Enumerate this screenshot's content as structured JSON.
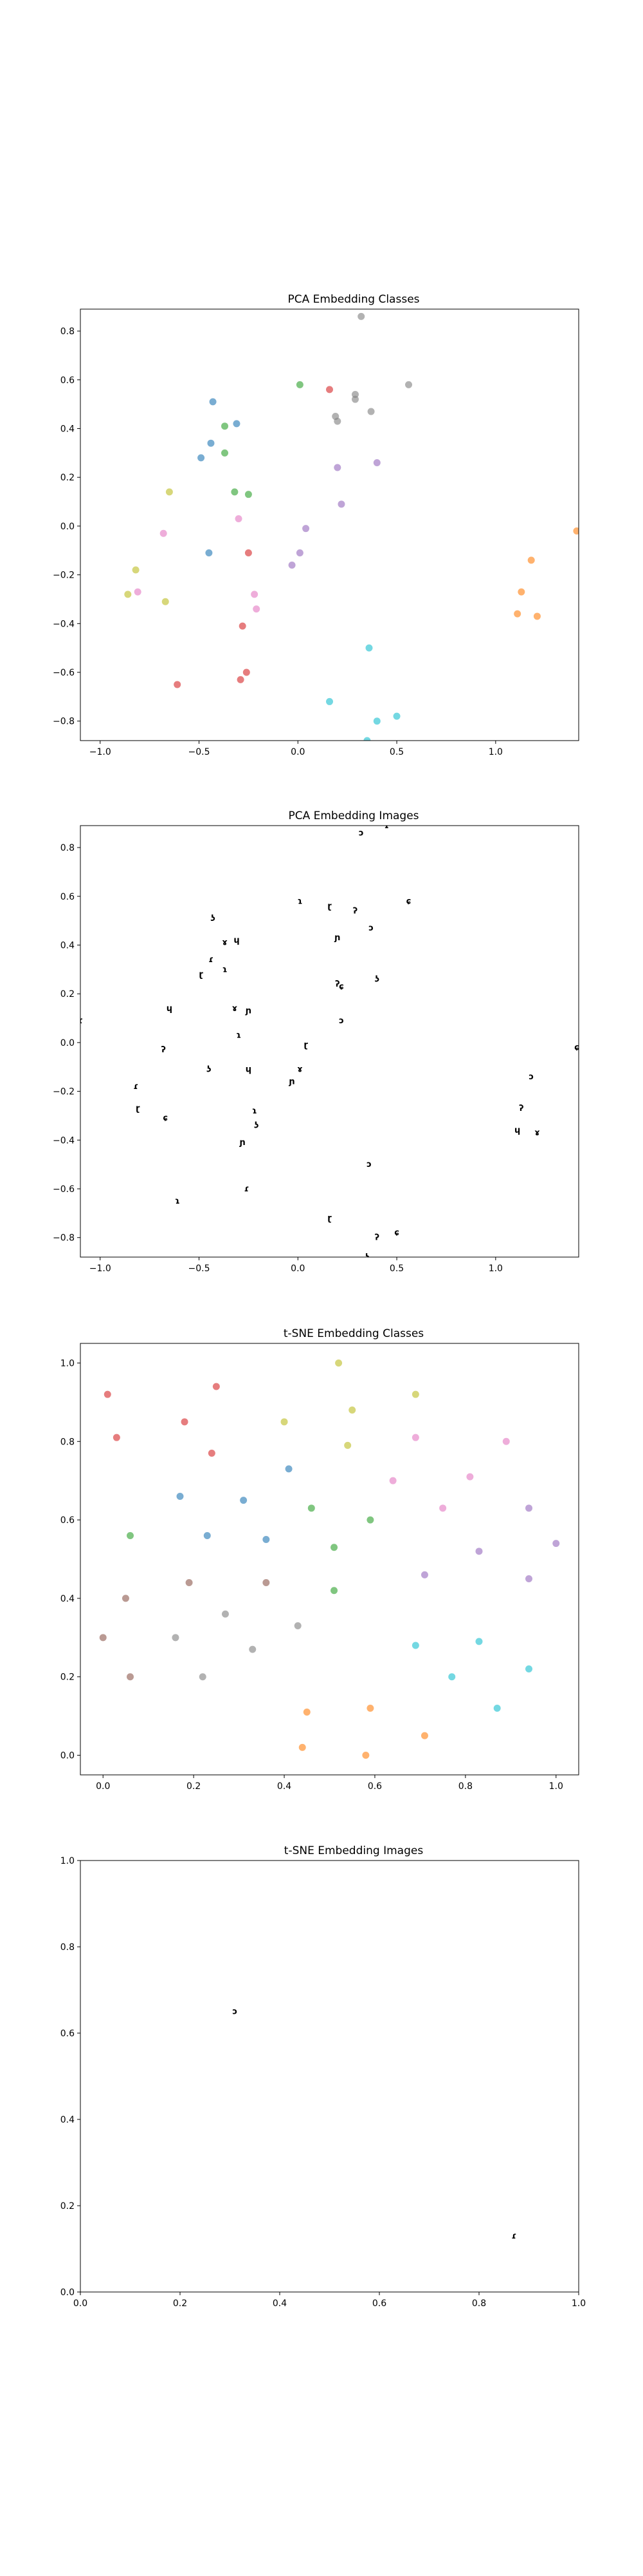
{
  "chart_data": [
    {
      "type": "scatter",
      "title": "PCA Embedding Classes",
      "xlim": [
        -1.1,
        1.42
      ],
      "ylim": [
        -0.88,
        0.89
      ],
      "xticks": [
        -1.0,
        -0.5,
        0.0,
        0.5,
        1.0
      ],
      "yticks": [
        -0.8,
        -0.6,
        -0.4,
        -0.2,
        0.0,
        0.2,
        0.4,
        0.6,
        0.8
      ],
      "xtick_labels": [
        "−1.0",
        "−0.5",
        "0.0",
        "0.5",
        "1.0"
      ],
      "ytick_labels": [
        "−0.8",
        "−0.6",
        "−0.4",
        "−0.2",
        "0.0",
        "0.2",
        "0.4",
        "0.6",
        "0.8"
      ],
      "grid": false,
      "series": [
        {
          "color": "#1f77b4",
          "points": [
            [
              -0.43,
              0.51
            ],
            [
              -0.31,
              0.42
            ],
            [
              -0.44,
              0.34
            ],
            [
              -0.49,
              0.28
            ],
            [
              -0.45,
              -0.11
            ]
          ]
        },
        {
          "color": "#ff7f0e",
          "points": [
            [
              1.41,
              -0.02
            ],
            [
              1.18,
              -0.14
            ],
            [
              1.13,
              -0.27
            ],
            [
              1.11,
              -0.36
            ],
            [
              1.21,
              -0.37
            ]
          ]
        },
        {
          "color": "#2ca02c",
          "points": [
            [
              0.01,
              0.58
            ],
            [
              -0.37,
              0.41
            ],
            [
              -0.37,
              0.3
            ],
            [
              -0.32,
              0.14
            ],
            [
              -0.25,
              0.13
            ]
          ]
        },
        {
          "color": "#d62728",
          "points": [
            [
              0.16,
              0.56
            ],
            [
              -0.25,
              -0.11
            ],
            [
              -0.28,
              -0.41
            ],
            [
              -0.26,
              -0.6
            ],
            [
              -0.29,
              -0.63
            ],
            [
              -0.61,
              -0.65
            ]
          ]
        },
        {
          "color": "#9467bd",
          "points": [
            [
              0.2,
              0.24
            ],
            [
              0.4,
              0.26
            ],
            [
              0.22,
              0.09
            ],
            [
              0.04,
              -0.01
            ],
            [
              0.01,
              -0.11
            ],
            [
              -0.03,
              -0.16
            ]
          ]
        },
        {
          "color": "#e377c2",
          "points": [
            [
              -0.68,
              -0.03
            ],
            [
              -0.3,
              0.03
            ],
            [
              -0.22,
              -0.28
            ],
            [
              -0.21,
              -0.34
            ],
            [
              -0.81,
              -0.27
            ]
          ]
        },
        {
          "color": "#7f7f7f",
          "points": [
            [
              0.32,
              0.86
            ],
            [
              0.29,
              0.54
            ],
            [
              0.29,
              0.52
            ],
            [
              0.37,
              0.47
            ],
            [
              0.19,
              0.45
            ],
            [
              0.2,
              0.43
            ],
            [
              0.56,
              0.58
            ]
          ]
        },
        {
          "color": "#bcbd22",
          "points": [
            [
              -0.65,
              0.14
            ],
            [
              -0.82,
              -0.18
            ],
            [
              -0.86,
              -0.28
            ],
            [
              -0.67,
              -0.31
            ]
          ]
        },
        {
          "color": "#17becf",
          "points": [
            [
              0.36,
              -0.5
            ],
            [
              0.4,
              -0.8
            ],
            [
              0.5,
              -0.78
            ],
            [
              0.16,
              -0.72
            ],
            [
              0.35,
              -0.88
            ]
          ]
        }
      ]
    },
    {
      "type": "scatter",
      "title": "PCA Embedding Images",
      "xlim": [
        -1.1,
        1.42
      ],
      "ylim": [
        -0.88,
        0.89
      ],
      "xticks": [
        -1.0,
        -0.5,
        0.0,
        0.5,
        1.0
      ],
      "yticks": [
        -0.8,
        -0.6,
        -0.4,
        -0.2,
        0.0,
        0.2,
        0.4,
        0.6,
        0.8
      ],
      "xtick_labels": [
        "−1.0",
        "−0.5",
        "0.0",
        "0.5",
        "1.0"
      ],
      "ytick_labels": [
        "−0.8",
        "−0.6",
        "−0.4",
        "−0.2",
        "0.0",
        "0.2",
        "0.4",
        "0.6",
        "0.8"
      ],
      "grid": false,
      "marker": "image-glyph",
      "glyphs": [
        "ɔ",
        "ɾ",
        "ɿ",
        "ɽ",
        "ʔ",
        "ɕ",
        "ʖ",
        "ɥ",
        "ɤ",
        "ɲ"
      ],
      "points": [
        [
          0.32,
          0.86
        ],
        [
          0.45,
          0.89
        ],
        [
          0.01,
          0.58
        ],
        [
          0.16,
          0.56
        ],
        [
          0.29,
          0.54
        ],
        [
          0.56,
          0.58
        ],
        [
          -0.43,
          0.51
        ],
        [
          -0.31,
          0.42
        ],
        [
          -0.37,
          0.41
        ],
        [
          0.2,
          0.43
        ],
        [
          0.37,
          0.47
        ],
        [
          -0.44,
          0.34
        ],
        [
          -0.37,
          0.3
        ],
        [
          -0.49,
          0.28
        ],
        [
          0.2,
          0.24
        ],
        [
          0.22,
          0.23
        ],
        [
          0.4,
          0.26
        ],
        [
          -0.65,
          0.14
        ],
        [
          -0.32,
          0.14
        ],
        [
          -0.25,
          0.13
        ],
        [
          0.22,
          0.09
        ],
        [
          -1.1,
          0.09
        ],
        [
          -0.3,
          0.03
        ],
        [
          0.04,
          -0.01
        ],
        [
          -0.68,
          -0.03
        ],
        [
          1.41,
          -0.02
        ],
        [
          -0.45,
          -0.11
        ],
        [
          -0.25,
          -0.11
        ],
        [
          0.01,
          -0.11
        ],
        [
          -0.03,
          -0.16
        ],
        [
          1.18,
          -0.14
        ],
        [
          -0.82,
          -0.18
        ],
        [
          -0.22,
          -0.28
        ],
        [
          -0.81,
          -0.27
        ],
        [
          1.13,
          -0.27
        ],
        [
          -0.67,
          -0.31
        ],
        [
          -0.21,
          -0.34
        ],
        [
          1.11,
          -0.36
        ],
        [
          1.21,
          -0.37
        ],
        [
          -0.28,
          -0.41
        ],
        [
          0.36,
          -0.5
        ],
        [
          -0.26,
          -0.6
        ],
        [
          -0.61,
          -0.65
        ],
        [
          0.16,
          -0.72
        ],
        [
          0.4,
          -0.8
        ],
        [
          0.5,
          -0.78
        ],
        [
          0.35,
          -0.88
        ]
      ]
    },
    {
      "type": "scatter",
      "title": "t-SNE Embedding Classes",
      "xlim": [
        -0.05,
        1.05
      ],
      "ylim": [
        -0.05,
        1.05
      ],
      "xticks": [
        0.0,
        0.2,
        0.4,
        0.6,
        0.8,
        1.0
      ],
      "yticks": [
        0.0,
        0.2,
        0.4,
        0.6,
        0.8,
        1.0
      ],
      "xtick_labels": [
        "0.0",
        "0.2",
        "0.4",
        "0.6",
        "0.8",
        "1.0"
      ],
      "ytick_labels": [
        "0.0",
        "0.2",
        "0.4",
        "0.6",
        "0.8",
        "1.0"
      ],
      "grid": false,
      "series": [
        {
          "color": "#1f77b4",
          "points": [
            [
              0.17,
              0.66
            ],
            [
              0.23,
              0.56
            ],
            [
              0.31,
              0.65
            ],
            [
              0.36,
              0.55
            ],
            [
              0.41,
              0.73
            ]
          ]
        },
        {
          "color": "#ff7f0e",
          "points": [
            [
              0.45,
              0.11
            ],
            [
              0.44,
              0.02
            ],
            [
              0.58,
              0.0
            ],
            [
              0.59,
              0.12
            ],
            [
              0.71,
              0.05
            ]
          ]
        },
        {
          "color": "#2ca02c",
          "points": [
            [
              0.06,
              0.56
            ],
            [
              0.46,
              0.63
            ],
            [
              0.51,
              0.53
            ],
            [
              0.59,
              0.6
            ],
            [
              0.51,
              0.42
            ]
          ]
        },
        {
          "color": "#d62728",
          "points": [
            [
              0.01,
              0.92
            ],
            [
              0.03,
              0.81
            ],
            [
              0.18,
              0.85
            ],
            [
              0.25,
              0.94
            ],
            [
              0.24,
              0.77
            ]
          ]
        },
        {
          "color": "#9467bd",
          "points": [
            [
              0.71,
              0.46
            ],
            [
              0.83,
              0.52
            ],
            [
              0.94,
              0.63
            ],
            [
              1.0,
              0.54
            ],
            [
              0.94,
              0.45
            ]
          ]
        },
        {
          "color": "#e377c2",
          "points": [
            [
              0.64,
              0.7
            ],
            [
              0.69,
              0.81
            ],
            [
              0.75,
              0.63
            ],
            [
              0.81,
              0.71
            ],
            [
              0.89,
              0.8
            ]
          ]
        },
        {
          "color": "#8c564b",
          "points": [
            [
              0.0,
              0.3
            ],
            [
              0.05,
              0.4
            ],
            [
              0.06,
              0.2
            ],
            [
              0.19,
              0.44
            ],
            [
              0.36,
              0.44
            ]
          ]
        },
        {
          "color": "#7f7f7f",
          "points": [
            [
              0.16,
              0.3
            ],
            [
              0.22,
              0.2
            ],
            [
              0.27,
              0.36
            ],
            [
              0.33,
              0.27
            ],
            [
              0.43,
              0.33
            ]
          ]
        },
        {
          "color": "#bcbd22",
          "points": [
            [
              0.4,
              0.85
            ],
            [
              0.52,
              1.0
            ],
            [
              0.55,
              0.88
            ],
            [
              0.54,
              0.79
            ],
            [
              0.69,
              0.92
            ]
          ]
        },
        {
          "color": "#17becf",
          "points": [
            [
              0.69,
              0.28
            ],
            [
              0.77,
              0.2
            ],
            [
              0.83,
              0.29
            ],
            [
              0.87,
              0.12
            ],
            [
              0.94,
              0.22
            ]
          ]
        }
      ]
    },
    {
      "type": "scatter",
      "title": "t-SNE Embedding Images",
      "xlim": [
        0.0,
        1.0
      ],
      "ylim": [
        0.0,
        1.0
      ],
      "xticks": [
        0.0,
        0.2,
        0.4,
        0.6,
        0.8,
        1.0
      ],
      "yticks": [
        0.0,
        0.2,
        0.4,
        0.6,
        0.8,
        1.0
      ],
      "xtick_labels": [
        "0.0",
        "0.2",
        "0.4",
        "0.6",
        "0.8",
        "1.0"
      ],
      "ytick_labels": [
        "0.0",
        "0.2",
        "0.4",
        "0.6",
        "0.8",
        "1.0"
      ],
      "grid": false,
      "marker": "image-glyph",
      "glyphs": [
        "ɔ",
        "ɾ"
      ],
      "points": [
        [
          0.31,
          0.65
        ],
        [
          0.87,
          0.13
        ]
      ]
    }
  ]
}
